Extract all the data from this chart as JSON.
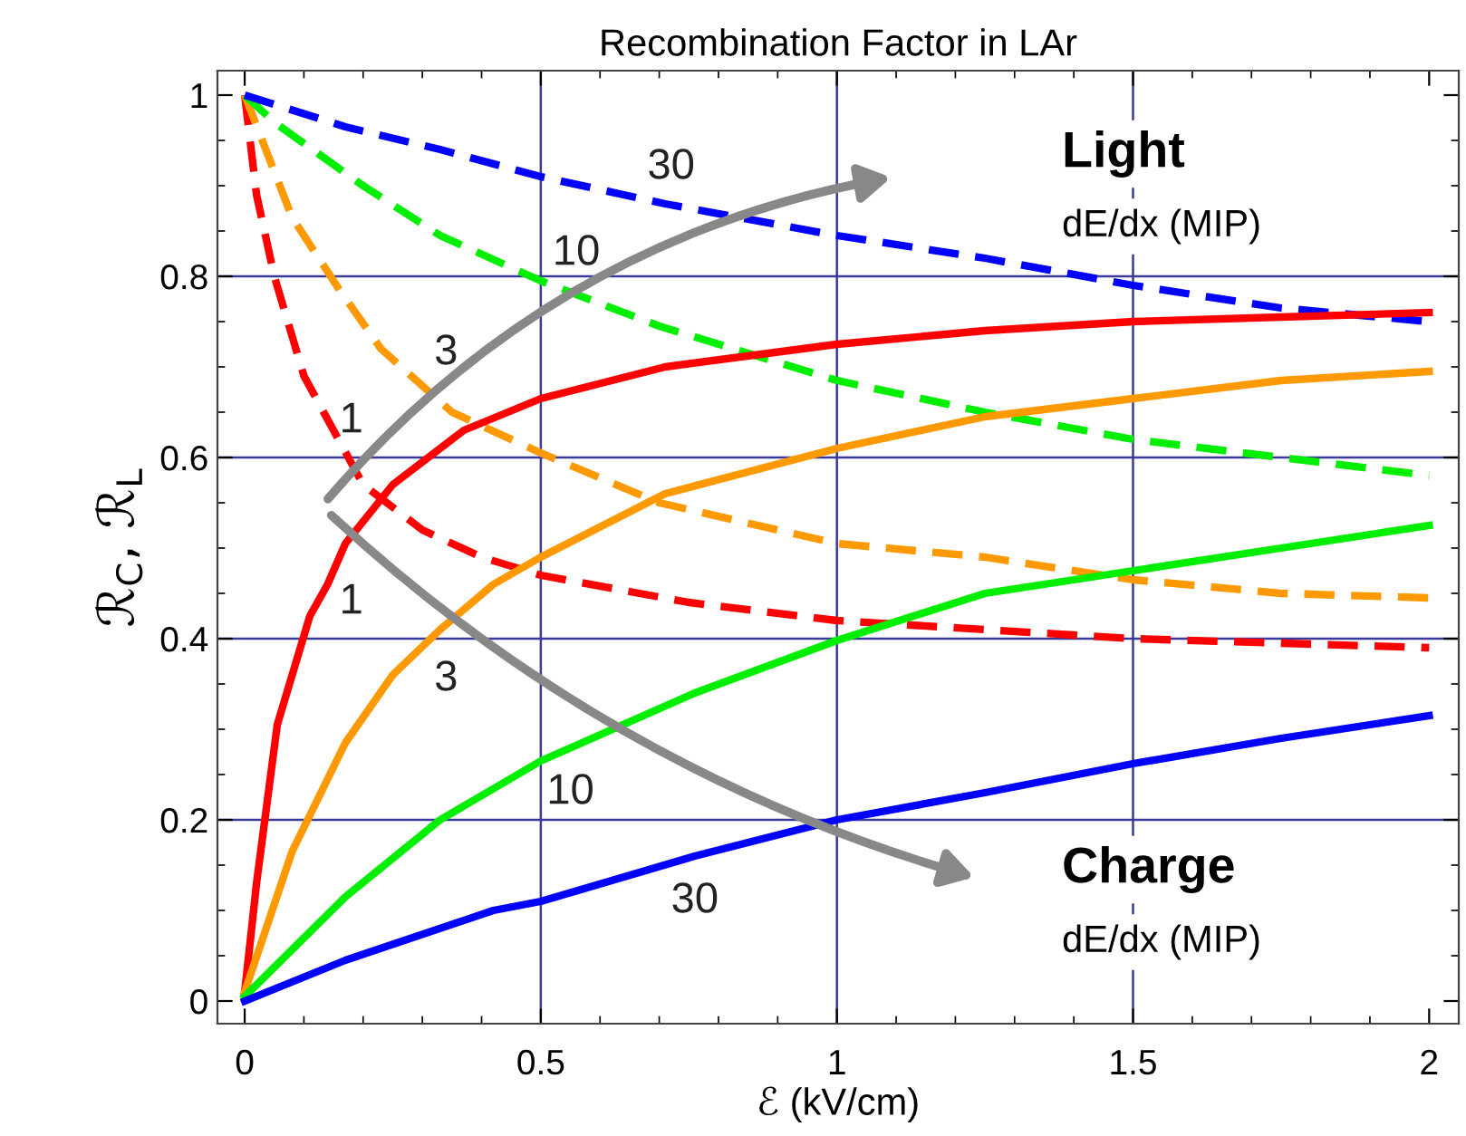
{
  "chart_data": {
    "type": "line",
    "title": "Recombination Factor in LAr",
    "xlabel": "ℰ (kV/cm)",
    "ylabel": "ℛ$_{C}$, ℛ$_{L}$",
    "xlim": [
      -0.046,
      2.05
    ],
    "ylim": [
      -0.025,
      1.027
    ],
    "xticks": [
      0,
      0.5,
      1,
      1.5,
      2
    ],
    "yticks": [
      0,
      0.2,
      0.4,
      0.6,
      0.8,
      1
    ],
    "grid": true,
    "series": [
      {
        "color": "#ff0000",
        "line_style": "dashed",
        "x": [
          0,
          0.02,
          0.05,
          0.1,
          0.15,
          0.2,
          0.3,
          0.4,
          0.5,
          0.75,
          1,
          1.25,
          1.5,
          1.75,
          2
        ],
        "values": [
          1,
          0.89,
          0.8,
          0.69,
          0.63,
          0.57,
          0.52,
          0.49,
          0.47,
          0.44,
          0.42,
          0.41,
          0.4,
          0.395,
          0.39
        ]
      },
      {
        "color": "#ff9900",
        "line_style": "dashed",
        "x": [
          0,
          0.08,
          0.16,
          0.23,
          0.35,
          0.5,
          0.7,
          1,
          1.25,
          1.5,
          1.75,
          2
        ],
        "values": [
          1,
          0.865,
          0.785,
          0.72,
          0.65,
          0.605,
          0.55,
          0.505,
          0.49,
          0.465,
          0.45,
          0.445
        ]
      },
      {
        "color": "#00ee00",
        "line_style": "dashed",
        "x": [
          0,
          0.05,
          0.2,
          0.33,
          0.5,
          0.7,
          1,
          1.25,
          1.5,
          1.75,
          2
        ],
        "values": [
          1,
          0.97,
          0.9,
          0.845,
          0.795,
          0.745,
          0.685,
          0.65,
          0.62,
          0.6,
          0.58
        ]
      },
      {
        "color": "#0000ff",
        "line_style": "dashed",
        "x": [
          0,
          0.17,
          0.33,
          0.5,
          0.71,
          1,
          1.25,
          1.5,
          1.75,
          2
        ],
        "values": [
          1,
          0.965,
          0.94,
          0.91,
          0.88,
          0.845,
          0.82,
          0.79,
          0.765,
          0.75
        ]
      },
      {
        "color": "#ff0000",
        "line_style": "solid",
        "x": [
          0,
          0.02,
          0.055,
          0.11,
          0.14,
          0.17,
          0.25,
          0.37,
          0.5,
          0.71,
          1,
          1.25,
          1.5,
          1.75,
          2
        ],
        "values": [
          0.01,
          0.13,
          0.305,
          0.425,
          0.46,
          0.505,
          0.57,
          0.63,
          0.665,
          0.7,
          0.725,
          0.74,
          0.75,
          0.755,
          0.76
        ]
      },
      {
        "color": "#ff9900",
        "line_style": "solid",
        "x": [
          0,
          0.08,
          0.17,
          0.25,
          0.33,
          0.42,
          0.5,
          0.71,
          1,
          1.25,
          1.5,
          1.75,
          2
        ],
        "values": [
          0.01,
          0.165,
          0.285,
          0.36,
          0.41,
          0.46,
          0.49,
          0.56,
          0.61,
          0.645,
          0.665,
          0.685,
          0.695
        ]
      },
      {
        "color": "#00ee00",
        "line_style": "solid",
        "x": [
          0,
          0.17,
          0.33,
          0.5,
          0.76,
          1,
          1.25,
          1.5,
          1.75,
          2
        ],
        "values": [
          0.005,
          0.115,
          0.2,
          0.265,
          0.34,
          0.398,
          0.45,
          0.475,
          0.5,
          0.525
        ]
      },
      {
        "color": "#0000ff",
        "line_style": "solid",
        "x": [
          0,
          0.17,
          0.42,
          0.5,
          0.76,
          1,
          1.25,
          1.5,
          1.75,
          2
        ],
        "values": [
          0,
          0.045,
          0.1,
          0.11,
          0.16,
          0.2,
          0.23,
          0.262,
          0.29,
          0.315
        ]
      }
    ],
    "annotations": [
      "30",
      "10",
      "3",
      "1",
      "1",
      "3",
      "10",
      "30",
      "Light",
      "dE/dx (MIP)",
      "Charge",
      "dE/dx (MIP)"
    ]
  }
}
